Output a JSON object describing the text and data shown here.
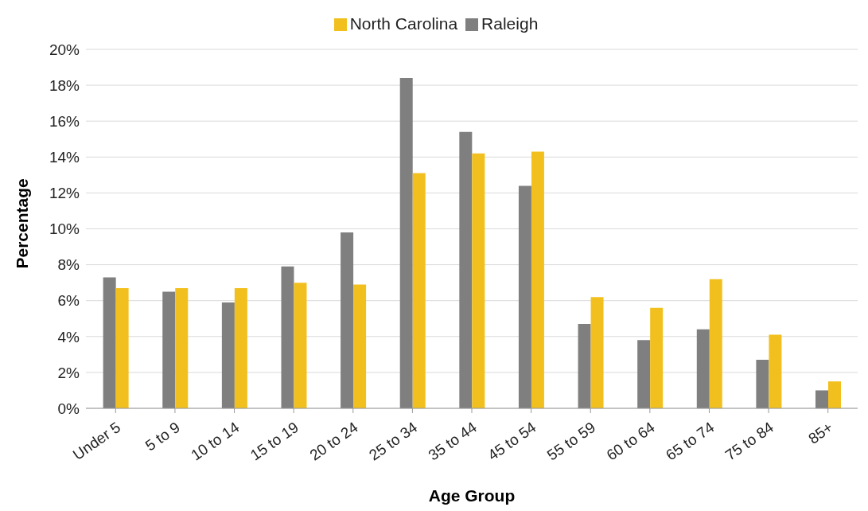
{
  "chart_data": {
    "type": "bar",
    "xlabel": "Age Group",
    "ylabel": "Percentage",
    "categories": [
      "Under 5",
      "5 to 9",
      "10 to 14",
      "15 to 19",
      "20 to 24",
      "25 to 34",
      "35 to 44",
      "45 to 54",
      "55 to 59",
      "60 to 64",
      "65 to 74",
      "75 to 84",
      "85+"
    ],
    "series": [
      {
        "name": "Raleigh",
        "color": "#7f7f7f",
        "values": [
          7.3,
          6.5,
          5.9,
          7.9,
          9.8,
          18.4,
          15.4,
          12.4,
          4.7,
          3.8,
          4.4,
          2.7,
          1.0
        ]
      },
      {
        "name": "North Carolina",
        "color": "#f2c01e",
        "values": [
          6.7,
          6.7,
          6.7,
          7.0,
          6.9,
          13.1,
          14.2,
          14.3,
          6.2,
          5.6,
          7.2,
          4.1,
          1.5
        ]
      }
    ],
    "ylim": [
      0,
      20
    ],
    "yticks": [
      {
        "value": 0,
        "label": "0%"
      },
      {
        "value": 2,
        "label": "2%"
      },
      {
        "value": 4,
        "label": "4%"
      },
      {
        "value": 6,
        "label": "6%"
      },
      {
        "value": 8,
        "label": "8%"
      },
      {
        "value": 10,
        "label": "10%"
      },
      {
        "value": 12,
        "label": "12%"
      },
      {
        "value": 14,
        "label": "14%"
      },
      {
        "value": 16,
        "label": "16%"
      },
      {
        "value": 18,
        "label": "18%"
      },
      {
        "value": 20,
        "label": "20%"
      }
    ],
    "grid": "y",
    "legend": "top"
  }
}
